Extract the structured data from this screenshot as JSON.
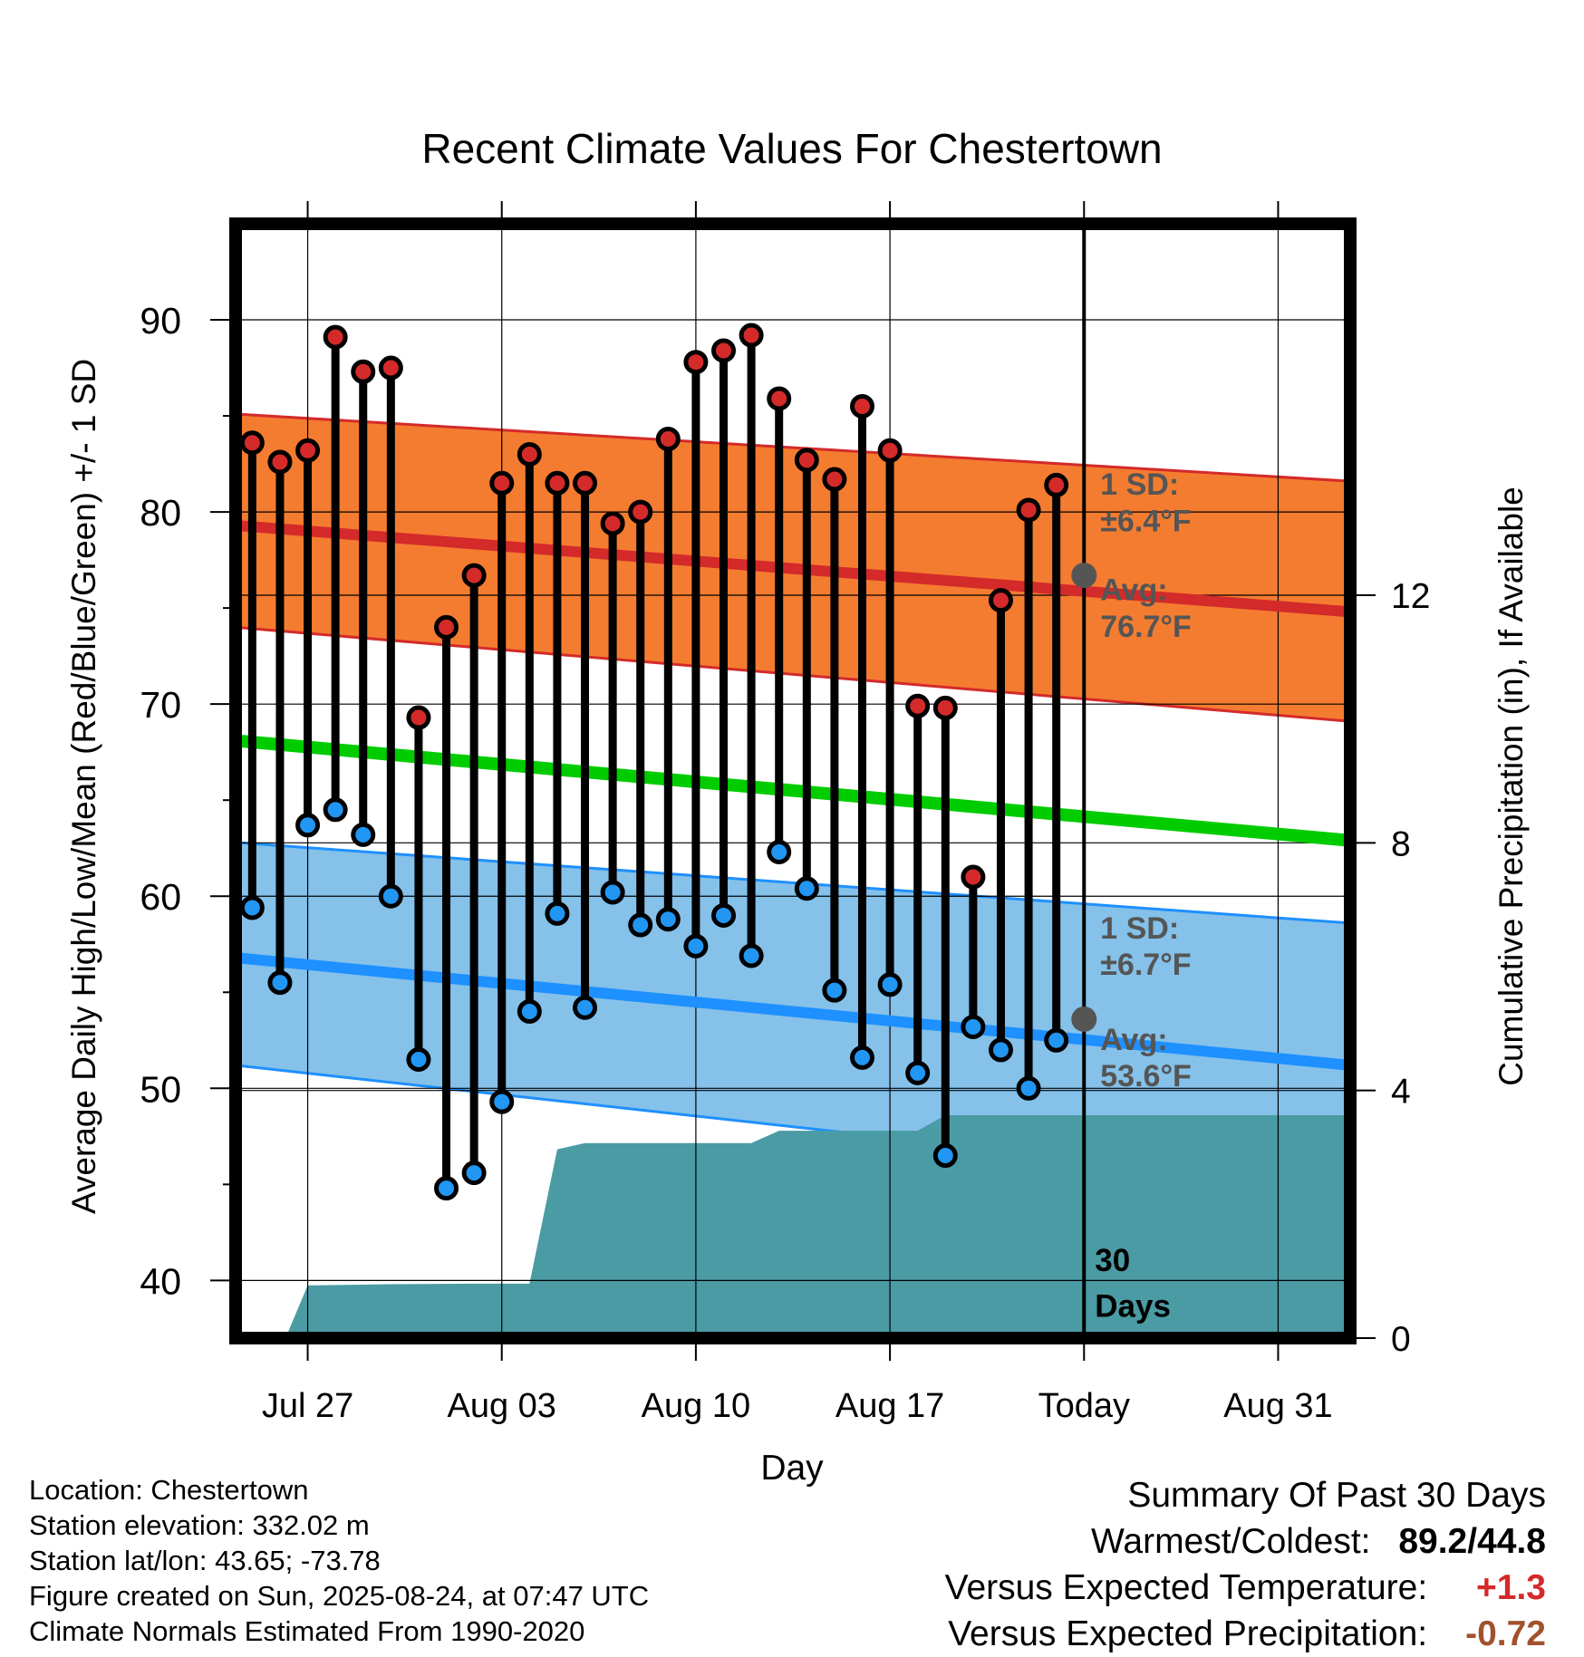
{
  "chart_data": {
    "type": "line",
    "title": "Recent Climate Values For Chestertown",
    "xlabel": "Day",
    "ylabel": "Average Daily High/Low/Mean (Red/Blue/Green) +/- 1 SD",
    "ylabel_right": "Cumulative Precipitation (in), If Available",
    "x_tick_labels": [
      "Jul 27",
      "Aug 03",
      "Aug 10",
      "Aug 17",
      "Today",
      "Aug 31"
    ],
    "x_tick_day_offsets": [
      0,
      7,
      14,
      21,
      28,
      35
    ],
    "xlim_day_offsets": [
      -2.6,
      37.6
    ],
    "ylim": [
      37,
      95
    ],
    "y_ticks": [
      40,
      50,
      60,
      70,
      80,
      90
    ],
    "y2lim": [
      0,
      18
    ],
    "y2_ticks": [
      0,
      4,
      8,
      12
    ],
    "grid": true,
    "today_marker_label": "30 Days",
    "observed": {
      "day_offsets": [
        -2,
        -1,
        0,
        1,
        2,
        3,
        4,
        5,
        6,
        7,
        8,
        9,
        10,
        11,
        12,
        13,
        14,
        15,
        16,
        17,
        18,
        19,
        20,
        21,
        22,
        23,
        24,
        25,
        26,
        27
      ],
      "highs": [
        83.6,
        82.6,
        83.2,
        89.1,
        87.3,
        87.5,
        69.3,
        74.0,
        76.7,
        81.5,
        83.0,
        81.5,
        81.5,
        79.4,
        80.0,
        83.8,
        87.8,
        88.4,
        89.2,
        85.9,
        82.7,
        81.7,
        85.5,
        83.2,
        69.9,
        69.8,
        61.0,
        75.4,
        80.1,
        81.4
      ],
      "lows": [
        59.4,
        55.5,
        63.7,
        64.5,
        63.2,
        60.0,
        51.5,
        44.8,
        45.6,
        49.3,
        54.0,
        59.1,
        54.2,
        60.2,
        58.5,
        58.8,
        57.4,
        59.0,
        56.9,
        62.3,
        60.4,
        55.1,
        51.6,
        55.4,
        50.8,
        46.5,
        53.2,
        52.0,
        50.0,
        52.5
      ]
    },
    "normals": {
      "day_offsets": [
        -2.6,
        37.6
      ],
      "avg_high": [
        79.3,
        74.8
      ],
      "avg_high_band": [
        [
          74.0,
          85.1
        ],
        [
          69.1,
          81.6
        ]
      ],
      "avg_mean": [
        68.1,
        62.9
      ],
      "avg_low": [
        56.8,
        51.2
      ],
      "avg_low_band": [
        [
          51.2,
          62.8
        ],
        [
          44.8,
          58.6
        ]
      ]
    },
    "precip": {
      "day_offsets": [
        -2.6,
        -0.8,
        0,
        3,
        6,
        8,
        9,
        10,
        16,
        17,
        22,
        23,
        37.6
      ],
      "cumulative_in": [
        0,
        0,
        0.85,
        0.87,
        0.88,
        0.88,
        3.05,
        3.15,
        3.15,
        3.35,
        3.35,
        3.6,
        3.6
      ]
    },
    "annotations": {
      "high_sd": [
        "1 SD:",
        "±6.4°F"
      ],
      "high_avg": [
        "Avg:",
        "76.7°F"
      ],
      "low_sd": [
        "1 SD:",
        "±6.7°F"
      ],
      "low_avg": [
        "Avg:",
        "53.6°F"
      ],
      "today_high_avg": 76.7,
      "today_low_avg": 53.6
    },
    "colors": {
      "high_band": "#f47c30",
      "high_line": "#d42a2a",
      "mean_line": "#00cc00",
      "low_band": "#85c1e9",
      "low_line": "#1e90ff",
      "precip": "#4a9ba4",
      "high_dot": "#d42a2a",
      "low_dot": "#2196f3",
      "annotation": "#555555"
    }
  },
  "info": {
    "location": "Location: Chestertown",
    "elevation": "Station elevation: 332.02 m",
    "latlon": "Station lat/lon: 43.65; -73.78",
    "created": "Figure created on Sun, 2025-08-24, at 07:47 UTC",
    "normals": "Climate Normals Estimated From 1990-2020"
  },
  "summary": {
    "title": "Summary Of Past 30 Days",
    "warm_cold_label": "Warmest/Coldest:",
    "warm_cold_value": "89.2/44.8",
    "temp_label": "Versus Expected Temperature:",
    "temp_value": "+1.3",
    "precip_label": "Versus Expected Precipitation:",
    "precip_value": "-0.72"
  }
}
